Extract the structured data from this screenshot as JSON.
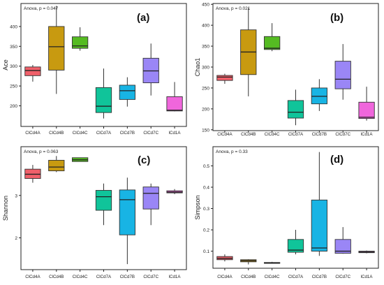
{
  "colors": {
    "ClCd4A": "#f0606a",
    "ClCd4B": "#c89a10",
    "ClCd4C": "#55bb22",
    "ClCd7A": "#10c49a",
    "ClCd7B": "#18b4e4",
    "ClCd7C": "#9a86f6",
    "lCd1A": "#f066dc"
  },
  "chart_data": [
    {
      "type": "boxplot",
      "panel_label": "(a)",
      "annotation": "Anova, p = 0.047",
      "ylabel": "Ace",
      "ylim": [
        148,
        458
      ],
      "yticks": [
        200,
        250,
        300,
        350,
        400
      ],
      "categories": [
        "ClCd4A",
        "ClCd4B",
        "ClCd4C",
        "ClCd7A",
        "ClCd7B",
        "ClCd7C",
        "lCd1A"
      ],
      "boxes": [
        {
          "min": 261,
          "q1": 276,
          "median": 289,
          "q3": 298,
          "max": 303
        },
        {
          "min": 230,
          "q1": 290,
          "median": 349,
          "q3": 400,
          "max": 452
        },
        {
          "min": 339,
          "q1": 345,
          "median": 351,
          "q3": 374,
          "max": 398
        },
        {
          "min": 168,
          "q1": 183,
          "median": 199,
          "q3": 246,
          "max": 294
        },
        {
          "min": 198,
          "q1": 216,
          "median": 238,
          "q3": 252,
          "max": 272
        },
        {
          "min": 226,
          "q1": 258,
          "median": 288,
          "q3": 320,
          "max": 357
        },
        {
          "min": 186,
          "q1": 187,
          "median": 189,
          "q3": 223,
          "max": 260
        }
      ]
    },
    {
      "type": "boxplot",
      "panel_label": "(b)",
      "annotation": "Anova, p = 0.021",
      "ylabel": "Chao1",
      "ylim": [
        148,
        452
      ],
      "yticks": [
        150,
        200,
        250,
        300,
        350,
        400,
        450
      ],
      "categories": [
        "ClCd4A",
        "ClCd4B",
        "ClCd4C",
        "ClCd7A",
        "ClCd7B",
        "ClCd7C",
        "lCd1A"
      ],
      "boxes": [
        {
          "min": 260,
          "q1": 268,
          "median": 276,
          "q3": 280,
          "max": 284
        },
        {
          "min": 230,
          "q1": 282,
          "median": 336,
          "q3": 389,
          "max": 441
        },
        {
          "min": 338,
          "q1": 342,
          "median": 345,
          "q3": 373,
          "max": 405
        },
        {
          "min": 161,
          "q1": 178,
          "median": 192,
          "q3": 220,
          "max": 246
        },
        {
          "min": 195,
          "q1": 212,
          "median": 230,
          "q3": 250,
          "max": 271
        },
        {
          "min": 222,
          "q1": 248,
          "median": 271,
          "q3": 314,
          "max": 355
        },
        {
          "min": 172,
          "q1": 177,
          "median": 180,
          "q3": 216,
          "max": 253
        }
      ]
    },
    {
      "type": "boxplot",
      "panel_label": "(c)",
      "annotation": "Anova, p = 0.063",
      "ylabel": "Shannon",
      "ylim": [
        1.25,
        4.15
      ],
      "yticks": [
        2,
        3
      ],
      "categories": [
        "ClCd4A",
        "ClCd4B",
        "ClCd4C",
        "ClCd7A",
        "ClCd7B",
        "ClCd7C",
        "lCd1A"
      ],
      "boxes": [
        {
          "min": 3.3,
          "q1": 3.4,
          "median": 3.5,
          "q3": 3.62,
          "max": 3.72
        },
        {
          "min": 3.55,
          "q1": 3.58,
          "median": 3.67,
          "q3": 3.83,
          "max": 3.93
        },
        {
          "min": 3.8,
          "q1": 3.8,
          "median": 3.84,
          "q3": 3.89,
          "max": 3.89
        },
        {
          "min": 2.3,
          "q1": 2.65,
          "median": 2.97,
          "q3": 3.12,
          "max": 3.28
        },
        {
          "min": 1.38,
          "q1": 2.07,
          "median": 2.9,
          "q3": 3.13,
          "max": 3.42
        },
        {
          "min": 2.3,
          "q1": 2.68,
          "median": 3.05,
          "q3": 3.2,
          "max": 3.28
        },
        {
          "min": 3.03,
          "q1": 3.06,
          "median": 3.08,
          "q3": 3.11,
          "max": 3.15
        }
      ]
    },
    {
      "type": "boxplot",
      "panel_label": "(d)",
      "annotation": "Anova, p = 0.33",
      "ylabel": "Simpson",
      "ylim": [
        0.02,
        0.59
      ],
      "yticks": [
        0.1,
        0.2,
        0.3,
        0.4,
        0.5
      ],
      "categories": [
        "ClCd4A",
        "ClCd4B",
        "ClCd4C",
        "ClCd7A",
        "ClCd7B",
        "ClCd7C",
        "lCd1A"
      ],
      "boxes": [
        {
          "min": 0.052,
          "q1": 0.06,
          "median": 0.066,
          "q3": 0.075,
          "max": 0.085
        },
        {
          "min": 0.038,
          "q1": 0.05,
          "median": 0.055,
          "q3": 0.06,
          "max": 0.062
        },
        {
          "min": 0.042,
          "q1": 0.043,
          "median": 0.044,
          "q3": 0.047,
          "max": 0.05
        },
        {
          "min": 0.085,
          "q1": 0.095,
          "median": 0.105,
          "q3": 0.155,
          "max": 0.2
        },
        {
          "min": 0.078,
          "q1": 0.1,
          "median": 0.115,
          "q3": 0.34,
          "max": 0.565
        },
        {
          "min": 0.088,
          "q1": 0.09,
          "median": 0.1,
          "q3": 0.155,
          "max": 0.213
        },
        {
          "min": 0.09,
          "q1": 0.093,
          "median": 0.096,
          "q3": 0.1,
          "max": 0.103
        }
      ]
    }
  ]
}
